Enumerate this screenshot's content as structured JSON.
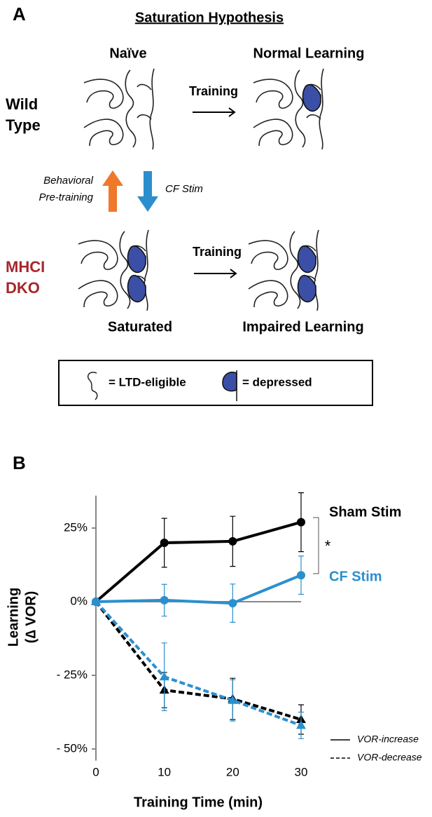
{
  "panel_a": {
    "label": "A",
    "title": "Saturation Hypothesis",
    "columns": [
      "Naïve",
      "Normal Learning"
    ],
    "bottom_columns": [
      "Saturated",
      "Impaired Learning"
    ],
    "rows": [
      [
        "Wild",
        "Type"
      ],
      [
        "MHCI",
        "DKO"
      ]
    ],
    "transition": "Training",
    "up_arrow": [
      "Behavioral",
      "Pre-training"
    ],
    "down_arrow": "CF Stim",
    "legend": [
      "= LTD-eligible",
      "= depressed"
    ]
  },
  "chart_data": {
    "type": "line",
    "panel_label": "B",
    "x": [
      0,
      10,
      20,
      30
    ],
    "xlim": [
      0,
      30
    ],
    "xticks": [
      0,
      10,
      20,
      30
    ],
    "xlabel": "Training Time (min)",
    "ylabel": [
      "Learning",
      "(∆ VOR)"
    ],
    "ylim": [
      -53,
      36
    ],
    "yticks": [
      {
        "value": 25,
        "label": "25%"
      },
      {
        "value": 0,
        "label": "0%"
      },
      {
        "value": -25,
        "label": "- 25%"
      },
      {
        "value": -50,
        "label": "- 50%"
      }
    ],
    "series": [
      {
        "name": "Sham Stim",
        "color": "#000000",
        "values": [
          0,
          20,
          20.5,
          27
        ],
        "errors": [
          0,
          8.3,
          8.5,
          10
        ],
        "decrease_values": [
          0,
          -30,
          -33,
          -40
        ],
        "decrease_errors": [
          0,
          6,
          7,
          5
        ]
      },
      {
        "name": "CF Stim",
        "color": "#2b8fce",
        "values": [
          0,
          0.5,
          -0.5,
          9
        ],
        "errors": [
          0,
          5.4,
          6.5,
          6.5
        ],
        "decrease_values": [
          0,
          -25.5,
          -33.5,
          -42
        ],
        "decrease_errors": [
          0,
          11.5,
          7,
          4.5
        ]
      }
    ],
    "significance": "*",
    "line_styles": [
      "VOR-increase",
      "VOR-decrease"
    ]
  }
}
